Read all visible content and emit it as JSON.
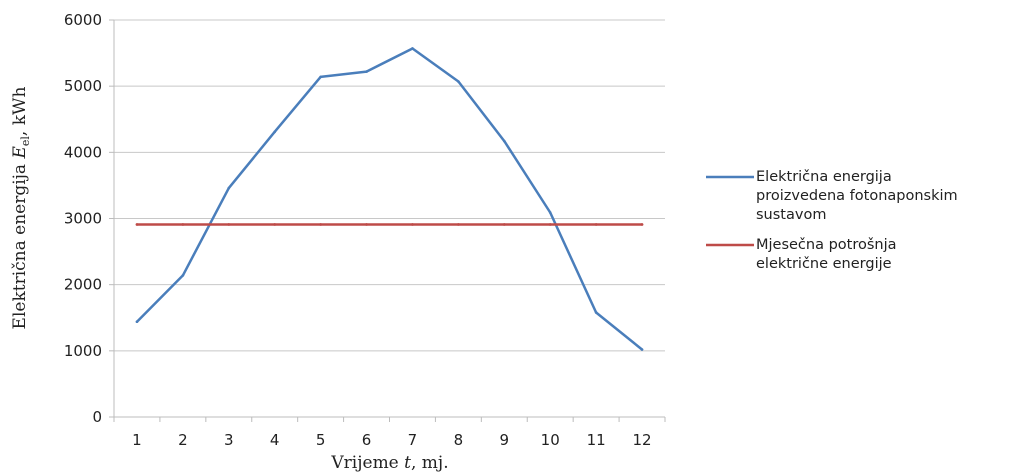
{
  "chart_data": {
    "type": "line",
    "title": "",
    "xlabel": "Vrijeme t, mj.",
    "ylabel": "Električna energija E_el, kWh",
    "ylim": [
      0,
      6000
    ],
    "yticks": [
      0,
      1000,
      2000,
      3000,
      4000,
      5000,
      6000
    ],
    "categories": [
      "1",
      "2",
      "3",
      "4",
      "5",
      "6",
      "7",
      "8",
      "9",
      "10",
      "11",
      "12"
    ],
    "grid": "horizontal",
    "legend_position": "right",
    "series": [
      {
        "name": "Električna energija proizvedena fotonaponskim sustavom",
        "color": "#4a7ebb",
        "values": [
          1440,
          2140,
          3460,
          4310,
          5140,
          5220,
          5570,
          5070,
          4170,
          3090,
          1580,
          1020
        ]
      },
      {
        "name": "Mjesečna potrošnja električne energije",
        "color": "#be4b48",
        "values": [
          2910,
          2910,
          2910,
          2910,
          2910,
          2910,
          2910,
          2910,
          2910,
          2910,
          2910,
          2910
        ]
      }
    ]
  },
  "labels": {
    "xlabel_pre": "Vrijeme ",
    "xlabel_var": "t",
    "xlabel_post": ", mj.",
    "ylabel_pre": "Električna energija ",
    "ylabel_var": "E",
    "ylabel_sub": "el",
    "ylabel_post": ", kWh",
    "legend": [
      [
        "Električna energija",
        "proizvedena fotonaponskim",
        "sustavom"
      ],
      [
        "Mjesečna potrošnja",
        "električne energije"
      ]
    ]
  }
}
